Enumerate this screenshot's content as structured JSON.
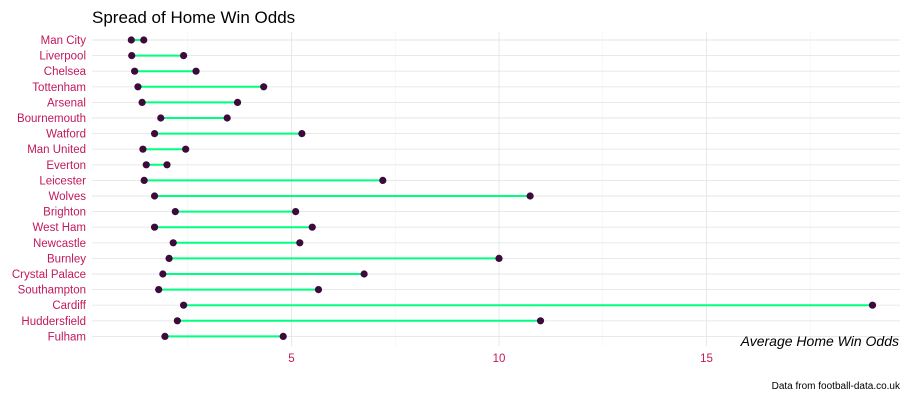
{
  "chart_data": {
    "type": "dumbbell",
    "title": "Spread of Home Win Odds",
    "xlabel": "Average Home Win Odds",
    "ylabel": "",
    "caption": "Data from football-data.co.uk",
    "xlim": [
      0,
      19.7
    ],
    "xticks": [
      5,
      10,
      15
    ],
    "grid": true,
    "colors": {
      "segment": "#00ff7f",
      "point": "#3d0a3c",
      "tick_label": "#c2185b"
    },
    "teams": [
      {
        "name": "Man City",
        "min": 1.14,
        "max": 1.44
      },
      {
        "name": "Liverpool",
        "min": 1.15,
        "max": 2.4
      },
      {
        "name": "Chelsea",
        "min": 1.22,
        "max": 2.7
      },
      {
        "name": "Tottenham",
        "min": 1.3,
        "max": 4.33
      },
      {
        "name": "Arsenal",
        "min": 1.4,
        "max": 3.7
      },
      {
        "name": "Bournemouth",
        "min": 1.85,
        "max": 3.45
      },
      {
        "name": "Watford",
        "min": 1.7,
        "max": 5.25
      },
      {
        "name": "Man United",
        "min": 1.42,
        "max": 2.45
      },
      {
        "name": "Everton",
        "min": 1.5,
        "max": 2.0
      },
      {
        "name": "Leicester",
        "min": 1.45,
        "max": 7.2
      },
      {
        "name": "Wolves",
        "min": 1.7,
        "max": 10.75
      },
      {
        "name": "Brighton",
        "min": 2.2,
        "max": 5.1
      },
      {
        "name": "West Ham",
        "min": 1.7,
        "max": 5.5
      },
      {
        "name": "Newcastle",
        "min": 2.15,
        "max": 5.2
      },
      {
        "name": "Burnley",
        "min": 2.05,
        "max": 10.0
      },
      {
        "name": "Crystal Palace",
        "min": 1.9,
        "max": 6.75
      },
      {
        "name": "Southampton",
        "min": 1.8,
        "max": 5.65
      },
      {
        "name": "Cardiff",
        "min": 2.4,
        "max": 19.0
      },
      {
        "name": "Huddersfield",
        "min": 2.25,
        "max": 11.0
      },
      {
        "name": "Fulham",
        "min": 1.95,
        "max": 4.8
      }
    ]
  }
}
